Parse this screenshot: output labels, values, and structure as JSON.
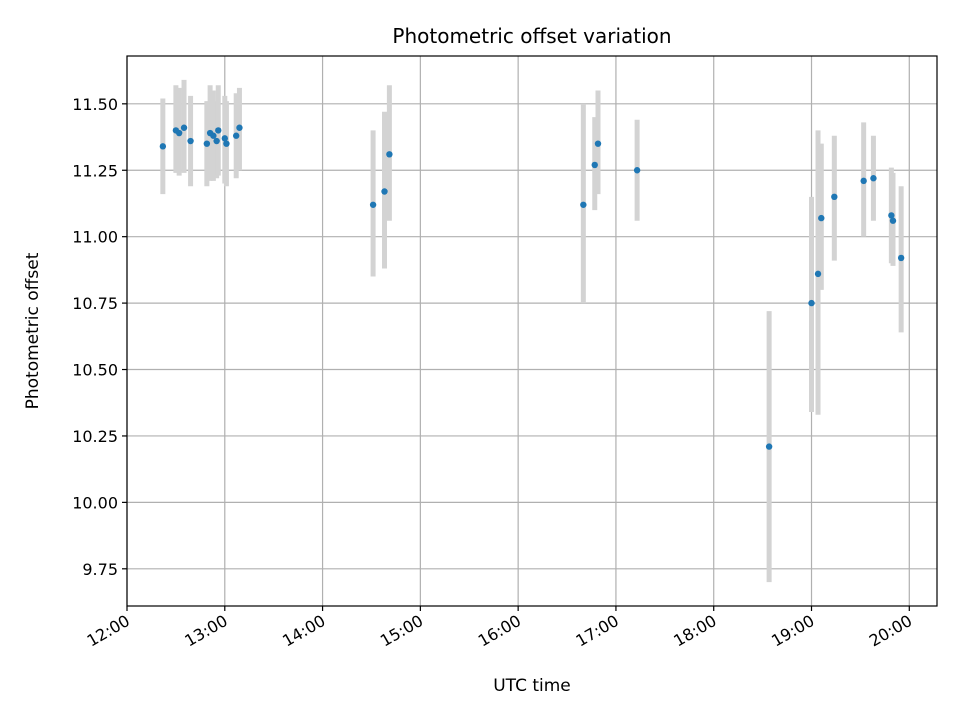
{
  "chart_data": {
    "type": "scatter",
    "title": "Photometric offset variation",
    "xlabel": "UTC time",
    "ylabel": "Photometric offset",
    "x_tick_labels": [
      "12:00",
      "13:00",
      "14:00",
      "15:00",
      "16:00",
      "17:00",
      "18:00",
      "19:00",
      "20:00"
    ],
    "y_tick_labels": [
      "9.75",
      "10.00",
      "10.25",
      "10.50",
      "10.75",
      "11.00",
      "11.25",
      "11.50"
    ],
    "ylim": [
      9.61,
      11.68
    ],
    "xlim": [
      "12:00",
      "20:17"
    ],
    "grid": true,
    "marker_color": "#1f77b4",
    "errorbar_color": "#d3d3d3",
    "points": [
      {
        "x": "12:22",
        "y": 11.34,
        "err_low": 11.16,
        "err_high": 11.52
      },
      {
        "x": "12:30",
        "y": 11.4,
        "err_low": 11.24,
        "err_high": 11.57
      },
      {
        "x": "12:32",
        "y": 11.39,
        "err_low": 11.23,
        "err_high": 11.56
      },
      {
        "x": "12:35",
        "y": 11.41,
        "err_low": 11.24,
        "err_high": 11.59
      },
      {
        "x": "12:39",
        "y": 11.36,
        "err_low": 11.19,
        "err_high": 11.53
      },
      {
        "x": "12:49",
        "y": 11.35,
        "err_low": 11.19,
        "err_high": 11.51
      },
      {
        "x": "12:51",
        "y": 11.39,
        "err_low": 11.21,
        "err_high": 11.57
      },
      {
        "x": "12:53",
        "y": 11.38,
        "err_low": 11.21,
        "err_high": 11.55
      },
      {
        "x": "12:55",
        "y": 11.36,
        "err_low": 11.22,
        "err_high": 11.51
      },
      {
        "x": "12:56",
        "y": 11.4,
        "err_low": 11.23,
        "err_high": 11.57
      },
      {
        "x": "13:00",
        "y": 11.37,
        "err_low": 11.2,
        "err_high": 11.53
      },
      {
        "x": "13:01",
        "y": 11.35,
        "err_low": 11.19,
        "err_high": 11.51
      },
      {
        "x": "13:07",
        "y": 11.38,
        "err_low": 11.22,
        "err_high": 11.54
      },
      {
        "x": "13:09",
        "y": 11.41,
        "err_low": 11.25,
        "err_high": 11.56
      },
      {
        "x": "14:31",
        "y": 11.12,
        "err_low": 10.85,
        "err_high": 11.4
      },
      {
        "x": "14:38",
        "y": 11.17,
        "err_low": 10.88,
        "err_high": 11.47
      },
      {
        "x": "14:41",
        "y": 11.31,
        "err_low": 11.06,
        "err_high": 11.57
      },
      {
        "x": "16:40",
        "y": 11.12,
        "err_low": 10.75,
        "err_high": 11.5
      },
      {
        "x": "16:47",
        "y": 11.27,
        "err_low": 11.1,
        "err_high": 11.45
      },
      {
        "x": "16:49",
        "y": 11.35,
        "err_low": 11.16,
        "err_high": 11.55
      },
      {
        "x": "17:13",
        "y": 11.25,
        "err_low": 11.06,
        "err_high": 11.44
      },
      {
        "x": "18:34",
        "y": 10.21,
        "err_low": 9.7,
        "err_high": 10.72
      },
      {
        "x": "19:00",
        "y": 10.75,
        "err_low": 10.34,
        "err_high": 11.15
      },
      {
        "x": "19:04",
        "y": 10.86,
        "err_low": 10.33,
        "err_high": 11.4
      },
      {
        "x": "19:06",
        "y": 11.07,
        "err_low": 10.8,
        "err_high": 11.35
      },
      {
        "x": "19:14",
        "y": 11.15,
        "err_low": 10.91,
        "err_high": 11.38
      },
      {
        "x": "19:32",
        "y": 11.21,
        "err_low": 11.0,
        "err_high": 11.43
      },
      {
        "x": "19:38",
        "y": 11.22,
        "err_low": 11.06,
        "err_high": 11.38
      },
      {
        "x": "19:49",
        "y": 11.08,
        "err_low": 10.9,
        "err_high": 11.26
      },
      {
        "x": "19:50",
        "y": 11.06,
        "err_low": 10.89,
        "err_high": 11.24
      },
      {
        "x": "19:55",
        "y": 10.92,
        "err_low": 10.64,
        "err_high": 11.19
      }
    ]
  }
}
